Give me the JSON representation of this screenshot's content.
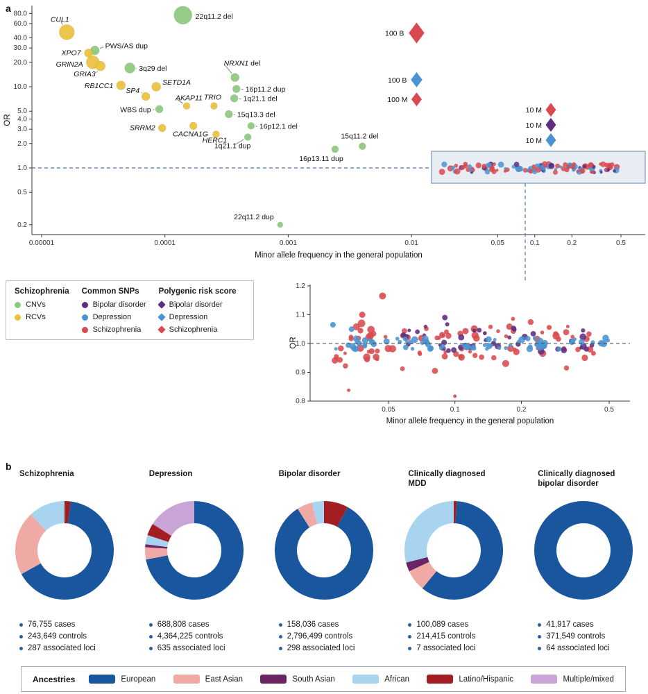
{
  "panel_labels": {
    "a": "a",
    "b": "b"
  },
  "colors": {
    "cnv": "#8cc87e",
    "rcv": "#e9c13c",
    "bipolar": "#5e2d80",
    "depression": "#4a94d2",
    "schizophrenia": "#d84a4f",
    "european": "#1a569e",
    "east_asian": "#efaaa5",
    "south_asian": "#6b2566",
    "african": "#a9d4f0",
    "latino": "#a31e22",
    "multiple": "#c9a4d6",
    "dashed_line": "#4f74ad",
    "box_border": "#90a8c8",
    "box_fill": "#e8edf4",
    "bullet": "#2a5fa5",
    "axis": "#333333",
    "text": "#1a1a1a"
  },
  "chart_data": [
    {
      "id": "main_scatter",
      "type": "scatter",
      "x_scale": "log",
      "y_scale": "log",
      "xlabel": "Minor allele frequency in the general population",
      "ylabel": "OR",
      "x_ticks": [
        1e-05,
        0.0001,
        0.001,
        0.01,
        0.05,
        0.1,
        0.2,
        0.5
      ],
      "x_tick_labels": [
        "0.00001",
        "0.0001",
        "0.001",
        "0.01",
        "0.05",
        "0.1",
        "0.2",
        "0.5"
      ],
      "y_ticks": [
        0.2,
        0.5,
        1,
        2,
        3,
        4,
        5,
        10,
        20,
        30,
        40,
        60,
        80
      ],
      "y_tick_labels": [
        "0.2",
        "0.5",
        "1.0",
        "2.0",
        "3.0",
        "4.0",
        "5.0",
        "10.0",
        "20.0",
        "30.0",
        "40.0",
        "60.0",
        "80.0"
      ],
      "reference_or": 1.0,
      "series": [
        {
          "name": "CNVs",
          "color_key": "cnv",
          "marker": "circle",
          "points": [
            {
              "label": "22q11.2 del",
              "maf": 0.00014,
              "or": 76,
              "r": 13,
              "lx": 18,
              "ly": 5,
              "anchor": "start"
            },
            {
              "label": "PWS/AS dup",
              "maf": 2.7e-05,
              "or": 28,
              "r": 6.5,
              "lx": 15,
              "ly": -3,
              "anchor": "start",
              "leader": true
            },
            {
              "label": "3q29 del",
              "maf": 5.2e-05,
              "or": 17,
              "r": 7.5,
              "lx": 13,
              "ly": 4,
              "anchor": "start",
              "leader": true
            },
            {
              "label": "NRXN1 del",
              "parts": [
                {
                  "t": "NRXN1",
                  "i": true
                },
                {
                  "t": " del",
                  "i": false
                }
              ],
              "maf": 0.00037,
              "or": 13,
              "r": 6,
              "lx": -16,
              "ly": -17,
              "anchor": "start",
              "leader": true
            },
            {
              "label": "16p11.2 dup",
              "maf": 0.00038,
              "or": 9.4,
              "r": 5.5,
              "lx": 13,
              "ly": 4,
              "anchor": "start",
              "leader": true
            },
            {
              "label": "1q21.1 del",
              "maf": 0.000365,
              "or": 7.2,
              "r": 5.5,
              "lx": 13,
              "ly": 4,
              "anchor": "start",
              "leader": true
            },
            {
              "label": "WBS dup",
              "maf": 9e-05,
              "or": 5.3,
              "r": 5.5,
              "lx": -12,
              "ly": 4,
              "anchor": "end",
              "leader": true
            },
            {
              "label": "15q13.3 del",
              "maf": 0.00033,
              "or": 4.6,
              "r": 5.5,
              "lx": 12,
              "ly": 4,
              "anchor": "start",
              "leader": true
            },
            {
              "label": "16p12.1 del",
              "maf": 0.0005,
              "or": 3.3,
              "r": 5,
              "lx": 12,
              "ly": 4,
              "anchor": "start",
              "leader": true
            },
            {
              "label": "1q21.1 dup",
              "maf": 0.00047,
              "or": 2.4,
              "r": 5,
              "lx": -22,
              "ly": 16,
              "anchor": "middle",
              "leader": true
            },
            {
              "label": "16p13.11 dup",
              "maf": 0.0024,
              "or": 1.7,
              "r": 5,
              "lx": -20,
              "ly": 17,
              "anchor": "middle"
            },
            {
              "label": "15q11.2 del",
              "maf": 0.004,
              "or": 1.85,
              "r": 5,
              "lx": -4,
              "ly": -11,
              "anchor": "middle"
            },
            {
              "label": "22q11.2 dup",
              "maf": 0.00086,
              "or": 0.2,
              "r": 4,
              "lx": -9,
              "ly": -8,
              "anchor": "end"
            }
          ]
        },
        {
          "name": "RCVs",
          "color_key": "rcv",
          "marker": "circle",
          "points": [
            {
              "label": "CUL1",
              "maf": 1.6e-05,
              "or": 47,
              "r": 11,
              "lx": -10,
              "ly": -15,
              "anchor": "middle",
              "italic": true,
              "leader": true
            },
            {
              "label": "XPO7",
              "maf": 2.4e-05,
              "or": 26,
              "r": 6,
              "lx": -11,
              "ly": 3,
              "anchor": "end",
              "italic": true,
              "leader": true
            },
            {
              "label": "GRIN2A",
              "maf": 2.6e-05,
              "or": 20,
              "r": 9.5,
              "lx": -14,
              "ly": 6,
              "anchor": "end",
              "italic": true,
              "leader": true
            },
            {
              "label": "GRIA3",
              "maf": 3e-05,
              "or": 18,
              "r": 7,
              "lx": -7,
              "ly": 15,
              "anchor": "end",
              "italic": true,
              "leader": true
            },
            {
              "label": "RB1CC1",
              "maf": 4.4e-05,
              "or": 10.4,
              "r": 6.5,
              "lx": -11,
              "ly": 4,
              "anchor": "end",
              "italic": true,
              "leader": true
            },
            {
              "label": "SETD1A",
              "maf": 8.5e-05,
              "or": 10,
              "r": 6.5,
              "lx": 9,
              "ly": -3,
              "anchor": "start",
              "italic": true,
              "leader": true
            },
            {
              "label": "SP4",
              "maf": 7e-05,
              "or": 7.6,
              "r": 6,
              "lx": -9,
              "ly": -5,
              "anchor": "end",
              "italic": true,
              "leader": true
            },
            {
              "label": "AKAP11",
              "maf": 0.00015,
              "or": 5.8,
              "r": 5,
              "lx": -16,
              "ly": -8,
              "anchor": "start",
              "italic": true,
              "leader": true
            },
            {
              "label": "TRIO",
              "maf": 0.00025,
              "or": 5.8,
              "r": 5,
              "lx": -2,
              "ly": -9,
              "anchor": "middle",
              "italic": true
            },
            {
              "label": "SRRM2",
              "maf": 9.5e-05,
              "or": 3.1,
              "r": 5.5,
              "lx": -10,
              "ly": 3,
              "anchor": "end",
              "italic": true,
              "leader": true
            },
            {
              "label": "CACNA1G",
              "maf": 0.00017,
              "or": 3.3,
              "r": 5.5,
              "lx": -4,
              "ly": 15,
              "anchor": "middle",
              "italic": true
            },
            {
              "label": "HERC1",
              "maf": 0.00026,
              "or": 2.6,
              "r": 5,
              "lx": -2,
              "ly": 12,
              "anchor": "middle",
              "italic": true
            }
          ]
        },
        {
          "name": "Polygenic risk score",
          "marker": "diamond",
          "points": [
            {
              "label": "100 B",
              "disorder": "schizophrenia",
              "maf": 0.011,
              "or": 46,
              "s": 15,
              "lx": -18,
              "ly": 4,
              "anchor": "end"
            },
            {
              "label": "100 B",
              "disorder": "depression",
              "maf": 0.011,
              "or": 12.2,
              "s": 11,
              "lx": -14,
              "ly": 4,
              "anchor": "end"
            },
            {
              "label": "100 M",
              "disorder": "schizophrenia",
              "maf": 0.011,
              "or": 7,
              "s": 10,
              "lx": -13,
              "ly": 4,
              "anchor": "end"
            },
            {
              "label": "10 M",
              "disorder": "schizophrenia",
              "maf": 0.135,
              "or": 5.2,
              "s": 10,
              "lx": -13,
              "ly": 4,
              "anchor": "end"
            },
            {
              "label": "10 M",
              "disorder": "bipolar",
              "maf": 0.135,
              "or": 3.4,
              "s": 10,
              "lx": -13,
              "ly": 4,
              "anchor": "end"
            },
            {
              "label": "10 M",
              "disorder": "depression",
              "maf": 0.135,
              "or": 2.2,
              "s": 10,
              "lx": -13,
              "ly": 4,
              "anchor": "end"
            }
          ]
        }
      ],
      "strip_cloud": {
        "seed": 7,
        "count": 120,
        "maf_min": 0.017,
        "maf_max": 0.52,
        "or_jitter": 0.12,
        "r_min": 2,
        "r_max": 4.5,
        "color_cycle": [
          "schizophrenia",
          "depression",
          "schizophrenia",
          "depression",
          "bipolar",
          "schizophrenia"
        ]
      },
      "legend": {
        "columns": [
          {
            "header": "Schizophrenia",
            "items": [
              {
                "label": "CNVs",
                "marker": "circle",
                "color_key": "cnv"
              },
              {
                "label": "RCVs",
                "marker": "circle",
                "color_key": "rcv"
              }
            ]
          },
          {
            "header": "Common SNPs",
            "items": [
              {
                "label": "Bipolar disorder",
                "marker": "circle",
                "color_key": "bipolar"
              },
              {
                "label": "Depression",
                "marker": "circle",
                "color_key": "depression"
              },
              {
                "label": "Schizophrenia",
                "marker": "circle",
                "color_key": "schizophrenia"
              }
            ]
          },
          {
            "header": "Polygenic risk score",
            "items": [
              {
                "label": "Bipolar disorder",
                "marker": "diamond",
                "color_key": "bipolar"
              },
              {
                "label": "Depression",
                "marker": "diamond",
                "color_key": "depression"
              },
              {
                "label": "Schizophrenia",
                "marker": "diamond",
                "color_key": "schizophrenia"
              }
            ]
          }
        ]
      }
    },
    {
      "id": "inset_scatter",
      "type": "scatter",
      "x_scale": "log",
      "y_scale": "linear",
      "xlabel": "Minor allele frequency in the general population",
      "ylabel": "OR",
      "x_ticks": [
        0.05,
        0.1,
        0.2,
        0.5
      ],
      "x_tick_labels": [
        "0.05",
        "0.1",
        "0.2",
        "0.5"
      ],
      "y_ticks": [
        0.8,
        0.9,
        1.0,
        1.1,
        1.2
      ],
      "y_tick_labels": [
        "0.8",
        "0.9",
        "1.0",
        "1.1",
        "1.2"
      ],
      "ylim": [
        0.8,
        1.2
      ],
      "reference_or": 1.0,
      "clouds": [
        {
          "name": "schizophrenia",
          "seed": 11,
          "count": 90,
          "maf_min": 0.028,
          "maf_max": 0.5,
          "mode": "split",
          "base": 0.015,
          "spread": 0.1,
          "r_min": 2.5,
          "r_max": 5.5
        },
        {
          "name": "bipolar",
          "seed": 12,
          "count": 42,
          "maf_min": 0.055,
          "maf_max": 0.42,
          "mode": "center",
          "center": 1.02,
          "spread": 0.05,
          "r_min": 2.5,
          "r_max": 5
        },
        {
          "name": "depression",
          "seed": 13,
          "count": 70,
          "maf_min": 0.025,
          "maf_max": 0.5,
          "mode": "center",
          "center": 1.0,
          "spread": 0.02,
          "r_min": 2.5,
          "r_max": 5
        }
      ],
      "extra_points": [
        {
          "name": "schizophrenia",
          "maf": 0.033,
          "or": 0.838,
          "r": 2.5
        },
        {
          "name": "schizophrenia",
          "maf": 0.1,
          "or": 0.817,
          "r": 2.5
        },
        {
          "name": "schizophrenia",
          "maf": 0.047,
          "or": 1.165,
          "r": 5
        },
        {
          "name": "schizophrenia",
          "maf": 0.038,
          "or": 1.1,
          "r": 4.5
        },
        {
          "name": "depression",
          "maf": 0.028,
          "or": 1.065,
          "r": 4
        },
        {
          "name": "depression",
          "maf": 0.034,
          "or": 1.05,
          "r": 4
        },
        {
          "name": "bipolar",
          "maf": 0.09,
          "or": 1.09,
          "r": 4
        },
        {
          "name": "schizophrenia",
          "maf": 0.029,
          "or": 0.955,
          "r": 3.5
        }
      ]
    },
    {
      "id": "ancestry_donuts",
      "type": "pie",
      "charts": [
        {
          "title_lines": [
            "Schizophrenia"
          ],
          "slices": [
            {
              "name": "Latino/Hispanic",
              "color_key": "latino",
              "pct": 2
            },
            {
              "name": "European",
              "color_key": "european",
              "pct": 65
            },
            {
              "name": "East Asian",
              "color_key": "east_asian",
              "pct": 21
            },
            {
              "name": "African",
              "color_key": "african",
              "pct": 12
            }
          ],
          "stats": [
            "76,755 cases",
            "243,649 controls",
            "287 associated loci"
          ]
        },
        {
          "title_lines": [
            "Depression"
          ],
          "slices": [
            {
              "name": "European",
              "color_key": "european",
              "pct": 72
            },
            {
              "name": "East Asian",
              "color_key": "east_asian",
              "pct": 4
            },
            {
              "name": "South Asian",
              "color_key": "south_asian",
              "pct": 1
            },
            {
              "name": "African",
              "color_key": "african",
              "pct": 3
            },
            {
              "name": "Latino/Hispanic",
              "color_key": "latino",
              "pct": 4
            },
            {
              "name": "Multiple/mixed",
              "color_key": "multiple",
              "pct": 16
            }
          ],
          "stats": [
            "688,808 cases",
            "4,364,225 controls",
            "635 associated loci"
          ]
        },
        {
          "title_lines": [
            "Bipolar disorder"
          ],
          "slices": [
            {
              "name": "Latino/Hispanic",
              "color_key": "latino",
              "pct": 8
            },
            {
              "name": "European",
              "color_key": "european",
              "pct": 83
            },
            {
              "name": "East Asian",
              "color_key": "east_asian",
              "pct": 5
            },
            {
              "name": "African",
              "color_key": "african",
              "pct": 4
            }
          ],
          "stats": [
            "158,036 cases",
            "2,796,499 controls",
            "298 associated loci"
          ]
        },
        {
          "title_lines": [
            "Clinically diagnosed",
            "MDD"
          ],
          "slices": [
            {
              "name": "Latino/Hispanic",
              "color_key": "latino",
              "pct": 1
            },
            {
              "name": "European",
              "color_key": "european",
              "pct": 60
            },
            {
              "name": "East Asian",
              "color_key": "east_asian",
              "pct": 7
            },
            {
              "name": "South Asian",
              "color_key": "south_asian",
              "pct": 3
            },
            {
              "name": "African",
              "color_key": "african",
              "pct": 29
            }
          ],
          "stats": [
            "100,089 cases",
            "214,415 controls",
            "7 associated loci"
          ]
        },
        {
          "title_lines": [
            "Clinically diagnosed",
            "bipolar disorder"
          ],
          "slices": [
            {
              "name": "European",
              "color_key": "european",
              "pct": 100
            }
          ],
          "stats": [
            "41,917 cases",
            "371,549 controls",
            "64 associated loci"
          ]
        }
      ]
    }
  ],
  "panel_b": {
    "ancestries": {
      "title": "Ancestries",
      "items": [
        {
          "label": "European",
          "color_key": "european"
        },
        {
          "label": "East Asian",
          "color_key": "east_asian"
        },
        {
          "label": "South Asian",
          "color_key": "south_asian"
        },
        {
          "label": "African",
          "color_key": "african"
        },
        {
          "label": "Latino/Hispanic",
          "color_key": "latino"
        },
        {
          "label": "Multiple/mixed",
          "color_key": "multiple"
        }
      ]
    }
  }
}
